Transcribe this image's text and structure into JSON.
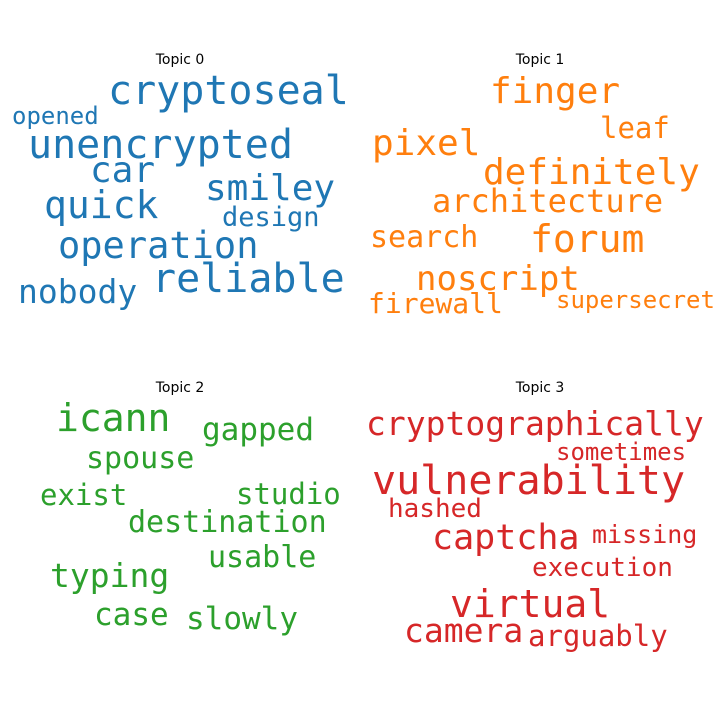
{
  "chart_data": [
    {
      "type": "wordcloud",
      "title": "Topic 0",
      "color": "#1f77b4",
      "words": [
        "cryptoseal",
        "opened",
        "unencrypted",
        "car",
        "smiley",
        "quick",
        "design",
        "operation",
        "reliable",
        "nobody"
      ]
    },
    {
      "type": "wordcloud",
      "title": "Topic 1",
      "color": "#ff7f0e",
      "words": [
        "finger",
        "leaf",
        "pixel",
        "definitely",
        "architecture",
        "search",
        "forum",
        "noscript",
        "firewall",
        "supersecret"
      ]
    },
    {
      "type": "wordcloud",
      "title": "Topic 2",
      "color": "#2ca02c",
      "words": [
        "icann",
        "gapped",
        "spouse",
        "exist",
        "studio",
        "destination",
        "usable",
        "typing",
        "case",
        "slowly"
      ]
    },
    {
      "type": "wordcloud",
      "title": "Topic 3",
      "color": "#d62728",
      "words": [
        "cryptographically",
        "sometimes",
        "vulnerability",
        "hashed",
        "captcha",
        "missing",
        "execution",
        "virtual",
        "camera",
        "arguably"
      ]
    }
  ]
}
